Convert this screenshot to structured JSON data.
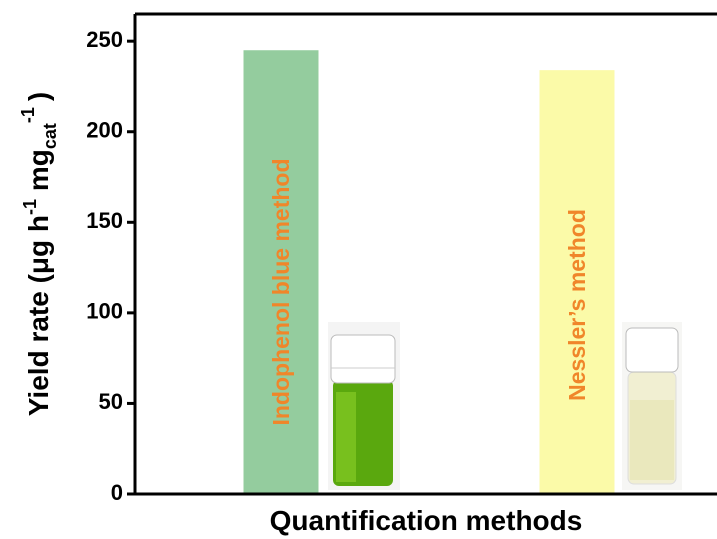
{
  "chart_data": {
    "type": "bar",
    "xlabel": "Quantification methods",
    "ylabel_parts": [
      "Yield rate (μg h",
      "-1",
      " mg",
      "cat",
      "-1",
      ")"
    ],
    "categories": [
      "Indophenol blue method",
      "Nessler’s method"
    ],
    "values": [
      245,
      234
    ],
    "colors": [
      "#94cc9e",
      "#fbfaa8"
    ],
    "label_color": "#f0862a",
    "ylim": [
      0,
      265
    ],
    "yticks": [
      0,
      50,
      100,
      150,
      200,
      250
    ],
    "grid": false
  }
}
